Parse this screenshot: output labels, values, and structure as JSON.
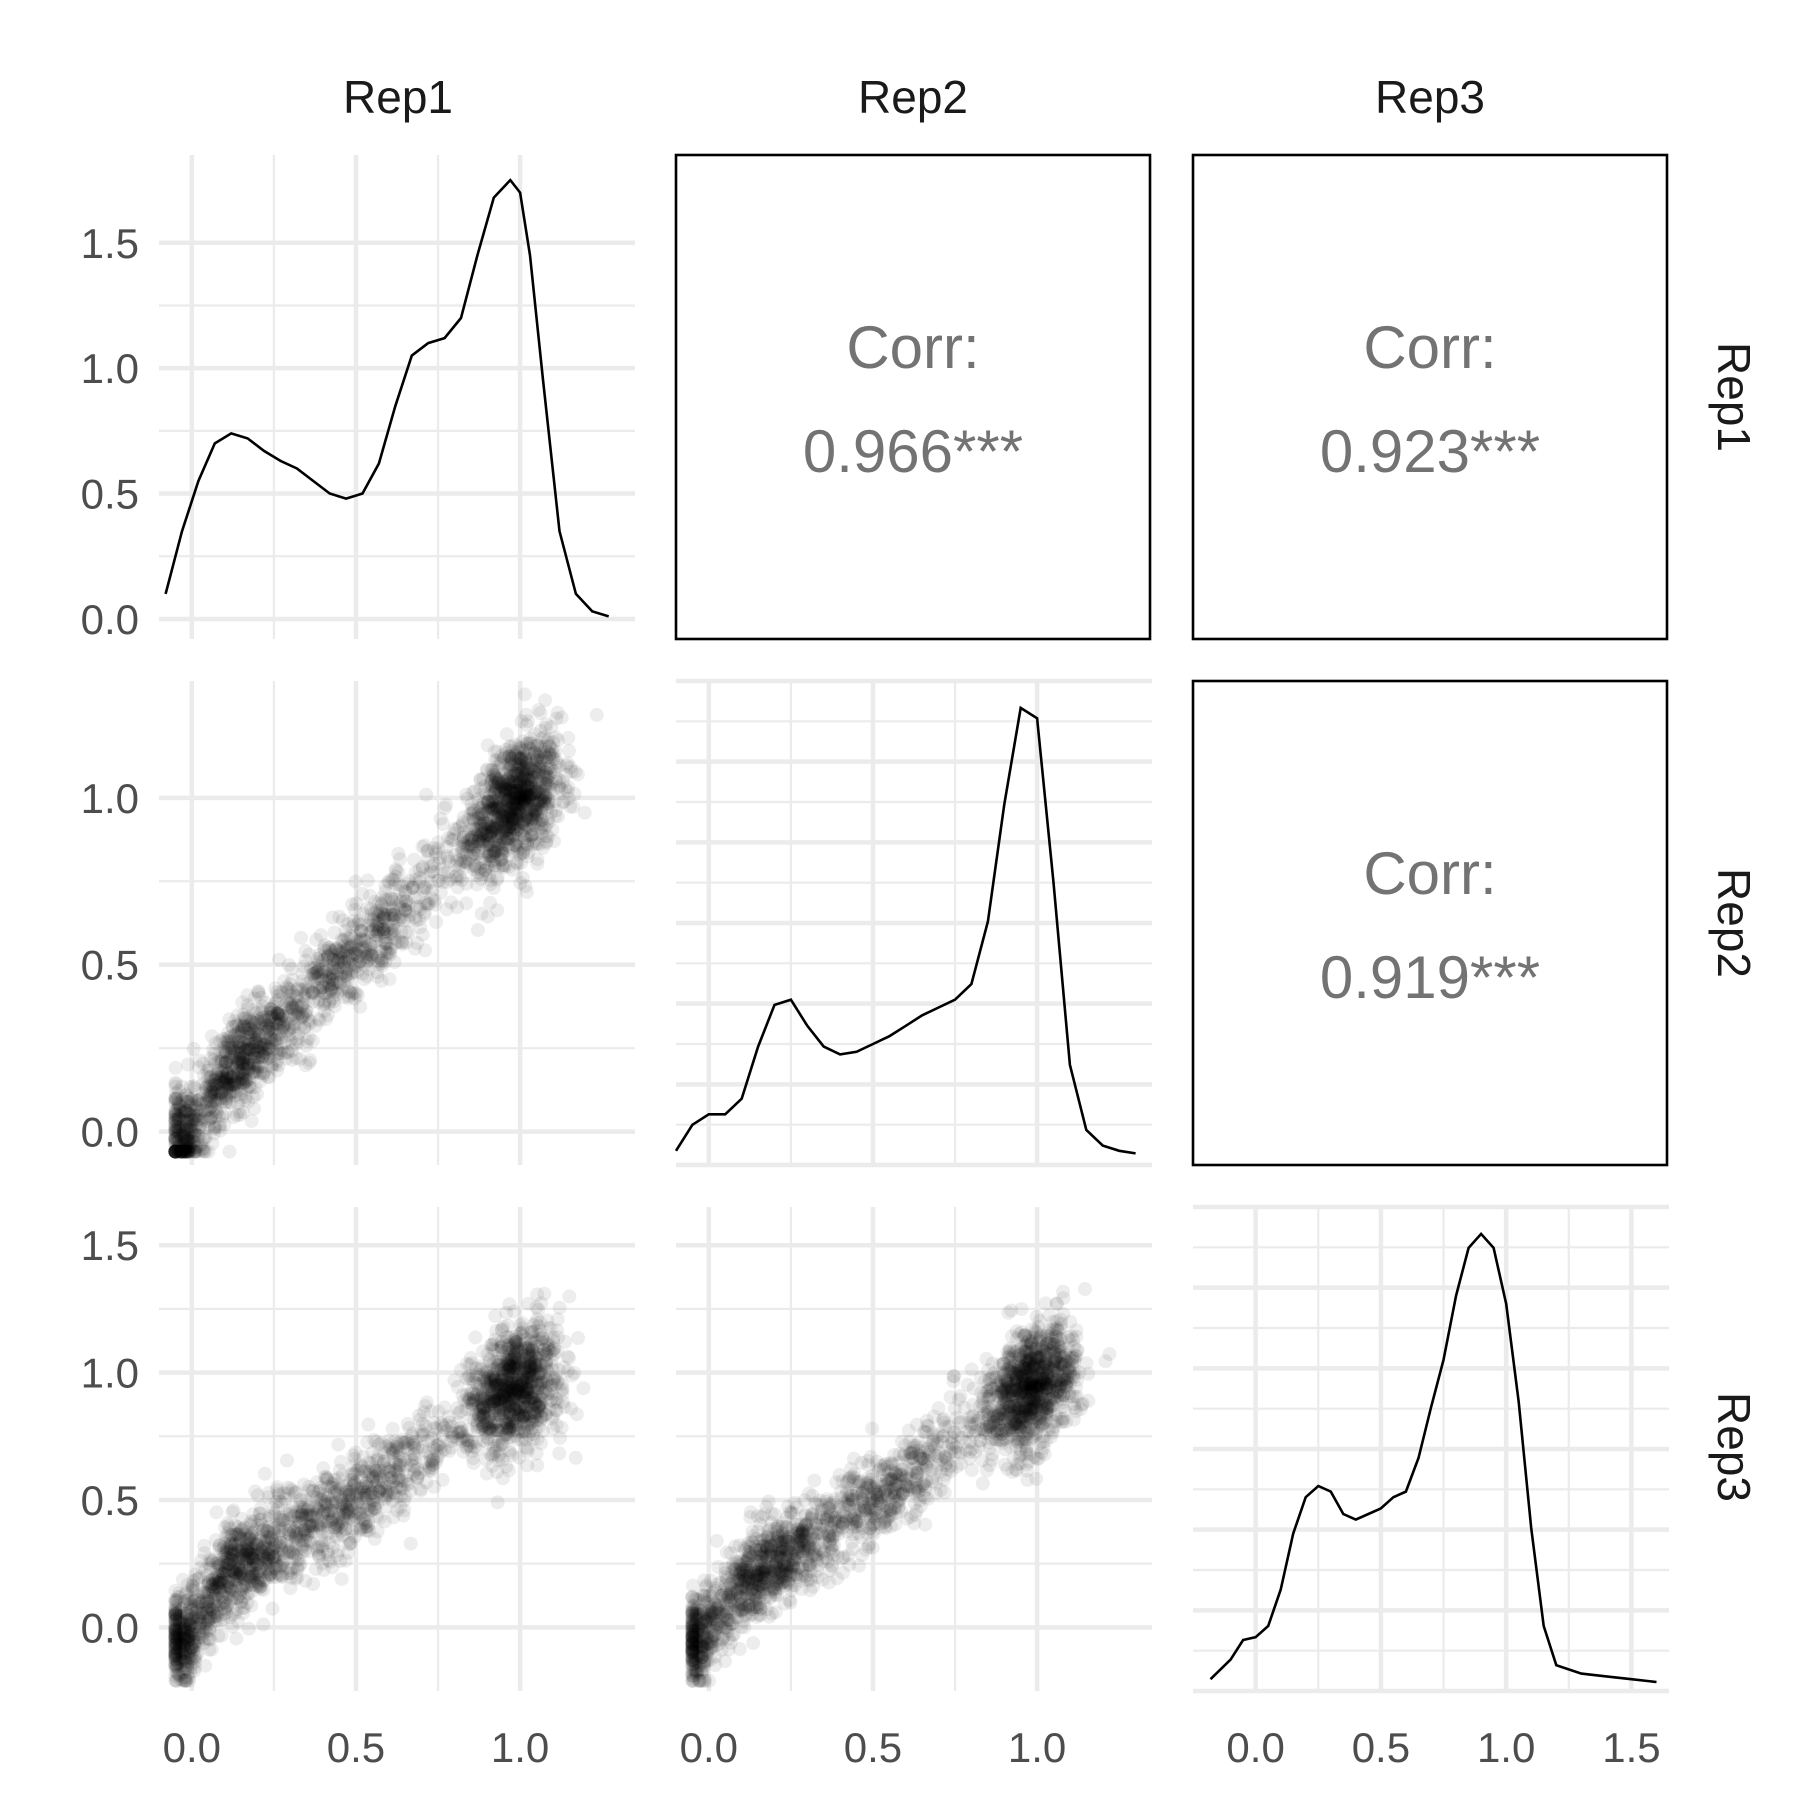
{
  "chart_data": {
    "type": "scatter-matrix",
    "variables": [
      "Rep1",
      "Rep2",
      "Rep3"
    ],
    "ranges": {
      "Rep1": [
        -0.1,
        1.35
      ],
      "Rep2": [
        -0.1,
        1.35
      ],
      "Rep3": [
        -0.25,
        1.65
      ]
    },
    "x_ticks": {
      "Rep1": [
        "0.0",
        "0.5",
        "1.0"
      ],
      "Rep2": [
        "0.0",
        "0.5",
        "1.0"
      ],
      "Rep3": [
        "0.0",
        "0.5",
        "1.0",
        "1.5"
      ]
    },
    "diagonal_ticks": {
      "Rep1": {
        "labels": [
          "0.0",
          "0.5",
          "1.0",
          "1.5"
        ],
        "ylim": [
          -0.08,
          1.85
        ]
      }
    },
    "y_ticks": {
      "Rep2": [
        "0.0",
        "0.5",
        "1.0"
      ],
      "Rep3": [
        "0.0",
        "0.5",
        "1.0",
        "1.5"
      ]
    },
    "densities": {
      "Rep1": {
        "x": [
          -0.08,
          -0.03,
          0.02,
          0.07,
          0.12,
          0.17,
          0.22,
          0.27,
          0.32,
          0.37,
          0.42,
          0.47,
          0.52,
          0.57,
          0.62,
          0.67,
          0.72,
          0.77,
          0.82,
          0.87,
          0.92,
          0.97,
          1.0,
          1.03,
          1.07,
          1.12,
          1.17,
          1.22,
          1.27
        ],
        "y": [
          0.1,
          0.35,
          0.55,
          0.7,
          0.74,
          0.72,
          0.67,
          0.63,
          0.6,
          0.55,
          0.5,
          0.48,
          0.5,
          0.62,
          0.85,
          1.05,
          1.1,
          1.12,
          1.2,
          1.45,
          1.68,
          1.75,
          1.7,
          1.45,
          0.95,
          0.35,
          0.1,
          0.03,
          0.01
        ]
      },
      "Rep2": {
        "x": [
          -0.1,
          -0.05,
          0.0,
          0.05,
          0.1,
          0.15,
          0.2,
          0.25,
          0.3,
          0.35,
          0.4,
          0.45,
          0.5,
          0.55,
          0.6,
          0.65,
          0.7,
          0.75,
          0.8,
          0.85,
          0.9,
          0.95,
          1.0,
          1.05,
          1.1,
          1.15,
          1.2,
          1.25,
          1.3
        ],
        "y": [
          0.02,
          0.12,
          0.16,
          0.16,
          0.22,
          0.42,
          0.58,
          0.6,
          0.5,
          0.42,
          0.39,
          0.4,
          0.43,
          0.46,
          0.5,
          0.54,
          0.57,
          0.6,
          0.66,
          0.9,
          1.35,
          1.72,
          1.68,
          1.05,
          0.35,
          0.1,
          0.04,
          0.02,
          0.01
        ]
      },
      "Rep3": {
        "x": [
          -0.18,
          -0.1,
          -0.05,
          0.0,
          0.05,
          0.1,
          0.15,
          0.2,
          0.25,
          0.3,
          0.35,
          0.4,
          0.45,
          0.5,
          0.55,
          0.6,
          0.65,
          0.7,
          0.75,
          0.8,
          0.85,
          0.9,
          0.95,
          1.0,
          1.05,
          1.1,
          1.15,
          1.2,
          1.3,
          1.4,
          1.5,
          1.6
        ],
        "y": [
          0.01,
          0.08,
          0.15,
          0.16,
          0.2,
          0.33,
          0.53,
          0.66,
          0.7,
          0.68,
          0.6,
          0.58,
          0.6,
          0.62,
          0.66,
          0.68,
          0.8,
          0.98,
          1.15,
          1.38,
          1.55,
          1.6,
          1.55,
          1.35,
          1.0,
          0.55,
          0.2,
          0.06,
          0.03,
          0.02,
          0.01,
          0.0
        ]
      }
    },
    "correlations": [
      {
        "row": "Rep1",
        "col": "Rep2",
        "label": "Corr:",
        "value": "0.966***"
      },
      {
        "row": "Rep1",
        "col": "Rep3",
        "label": "Corr:",
        "value": "0.923***"
      },
      {
        "row": "Rep2",
        "col": "Rep3",
        "label": "Corr:",
        "value": "0.919***"
      }
    ],
    "scatter_trends": {
      "Rep2~Rep1": {
        "x": [
          -0.02,
          0.1,
          0.3,
          0.5,
          0.7,
          0.85,
          1.0,
          1.1
        ],
        "y": [
          -0.02,
          0.17,
          0.35,
          0.55,
          0.72,
          0.88,
          1.0,
          1.05
        ],
        "spread": 0.07
      },
      "Rep3~Rep1": {
        "x": [
          -0.02,
          0.1,
          0.3,
          0.5,
          0.7,
          0.85,
          1.0,
          1.1
        ],
        "y": [
          -0.05,
          0.22,
          0.36,
          0.52,
          0.68,
          0.85,
          0.95,
          1.0
        ],
        "spread": 0.09
      },
      "Rep3~Rep2": {
        "x": [
          -0.02,
          0.1,
          0.3,
          0.5,
          0.7,
          0.85,
          1.0,
          1.1
        ],
        "y": [
          -0.05,
          0.18,
          0.34,
          0.5,
          0.68,
          0.85,
          0.95,
          1.0
        ],
        "spread": 0.09
      }
    }
  }
}
